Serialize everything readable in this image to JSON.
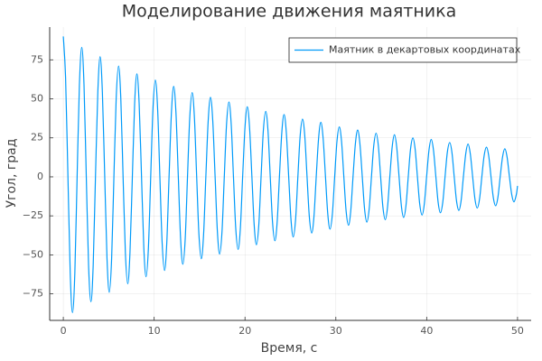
{
  "chart_data": {
    "type": "line",
    "title": "Моделирование движения маятника",
    "xlabel": "Время, с",
    "ylabel": "Угол, град",
    "xlim": [
      -1.5,
      51.5
    ],
    "ylim": [
      -92,
      96
    ],
    "xticks": [
      0,
      10,
      20,
      30,
      40,
      50
    ],
    "yticks": [
      {
        "value": -75,
        "label": "−75"
      },
      {
        "value": -50,
        "label": "−50"
      },
      {
        "value": -25,
        "label": "−25"
      },
      0,
      25,
      50,
      75
    ],
    "grid": true,
    "legend": "top-right",
    "x": [
      0,
      0.25,
      0.51,
      0.76,
      1.01,
      1.27,
      1.52,
      1.77,
      2.03,
      2.28,
      2.53,
      2.78,
      3.04,
      3.29,
      3.54,
      3.8,
      4.05,
      4.3,
      4.56,
      4.81,
      5.06,
      5.32,
      5.57,
      5.82,
      6.08,
      6.33,
      6.58,
      6.83,
      7.09,
      7.34,
      7.6,
      7.85,
      8.1,
      8.35,
      8.61,
      8.86,
      9.11,
      9.37,
      9.62,
      9.87,
      10.13,
      10.38,
      10.63,
      10.88,
      11.14,
      11.39,
      11.64,
      11.9,
      12.15,
      12.4,
      12.66,
      12.91,
      13.16,
      13.42,
      13.67,
      13.92,
      14.18,
      14.43,
      14.68,
      14.93,
      15.19,
      15.44,
      15.69,
      15.95,
      16.2,
      16.45,
      16.71,
      16.96,
      17.21,
      17.47,
      17.72,
      17.97,
      18.23,
      18.48,
      18.73,
      18.98,
      19.24,
      19.49,
      19.74,
      20.0,
      20.25,
      20.5,
      20.76,
      21.01,
      21.26,
      21.52,
      21.77,
      22.02,
      22.28,
      22.53,
      22.78,
      23.03,
      23.29,
      23.54,
      23.79,
      24.05,
      24.3,
      24.55,
      24.81,
      25.06,
      25.31,
      25.57,
      25.82,
      26.07,
      26.33,
      26.58,
      26.83,
      27.08,
      27.34,
      27.59,
      27.84,
      28.1,
      28.35,
      28.6,
      28.86,
      29.11,
      29.36,
      29.62,
      29.87,
      30.12,
      30.38,
      30.63,
      30.88,
      31.13,
      31.39,
      31.64,
      31.89,
      32.15,
      32.4,
      32.65,
      32.91,
      33.16,
      33.41,
      33.67,
      33.92,
      34.17,
      34.43,
      34.68,
      34.93,
      35.18,
      35.44,
      35.69,
      35.94,
      36.2,
      36.45,
      36.7,
      36.96,
      37.21,
      37.46,
      37.72,
      37.97,
      38.22,
      38.48,
      38.73,
      38.98,
      39.23,
      39.49,
      39.74,
      39.99,
      40.25,
      40.5,
      40.75,
      41.01,
      41.26,
      41.51,
      41.77,
      42.02,
      42.27,
      42.53,
      42.78,
      43.03,
      43.28,
      43.54,
      43.79,
      44.04,
      44.3,
      44.55,
      44.8,
      45.06,
      45.31,
      45.56,
      45.82,
      46.07,
      46.32,
      46.58,
      46.83,
      47.08,
      47.33,
      47.59,
      47.84,
      48.09,
      48.35,
      48.6,
      48.85,
      49.11,
      49.36,
      49.61,
      49.87,
      50
    ],
    "series": [
      {
        "name": "Маятник в декартовых координатах",
        "color": "#009af9",
        "values": [
          90,
          63.6,
          0,
          -61.5,
          -87,
          -61.5,
          0,
          58.7,
          83,
          58.7,
          0,
          -56.6,
          -80,
          -56.6,
          0,
          54.4,
          77,
          54.4,
          0,
          -52.3,
          -74,
          -52.3,
          0,
          50.2,
          71,
          50.2,
          0,
          -48.4,
          -68.5,
          -48.4,
          0,
          46.7,
          66,
          46.7,
          0,
          -45.2,
          -64,
          -45.2,
          0,
          43.8,
          62,
          43.8,
          0,
          -42.4,
          -60,
          -42.4,
          0,
          41,
          58,
          41,
          0,
          -39.6,
          -56,
          -39.6,
          0,
          38.2,
          54,
          38.2,
          0,
          -37.1,
          -52.5,
          -37.1,
          0,
          36.1,
          51,
          36.1,
          0,
          -35,
          -49.5,
          -35,
          0,
          33.9,
          48,
          33.9,
          0,
          -32.9,
          -46.5,
          -32.9,
          0,
          31.8,
          45,
          31.8,
          0,
          -30.8,
          -43.5,
          -30.8,
          0,
          29.7,
          42,
          29.7,
          0,
          -29,
          -41,
          -29,
          0,
          28.3,
          40,
          28.3,
          0,
          -27.2,
          -38.5,
          -27.2,
          0,
          26.2,
          37,
          26.2,
          0,
          -25.5,
          -36,
          -25.5,
          0,
          24.7,
          35,
          24.7,
          0,
          -23.7,
          -33.5,
          -23.7,
          0,
          22.6,
          32,
          22.6,
          0,
          -21.9,
          -31,
          -21.9,
          0,
          21.2,
          30,
          21.2,
          0,
          -20.5,
          -29,
          -20.5,
          0,
          19.8,
          28,
          19.8,
          0,
          -19.4,
          -27.5,
          -19.4,
          0,
          19.1,
          27,
          19.1,
          0,
          -18.4,
          -26,
          -18.4,
          0,
          17.7,
          25,
          17.7,
          0,
          -17.3,
          -24.5,
          -17.3,
          0,
          17,
          24,
          17,
          0,
          -16.3,
          -23,
          -16.3,
          0,
          15.6,
          22,
          15.6,
          0,
          -15.2,
          -21.5,
          -15.2,
          0,
          14.8,
          21,
          14.8,
          0,
          -14.1,
          -20,
          -14.1,
          0,
          13.4,
          19,
          13.4,
          0,
          -13.1,
          -18.5,
          -13.1,
          0,
          12.7,
          18,
          12.7,
          0,
          -11.3,
          -16,
          -11.3,
          -5.8
        ]
      }
    ]
  }
}
